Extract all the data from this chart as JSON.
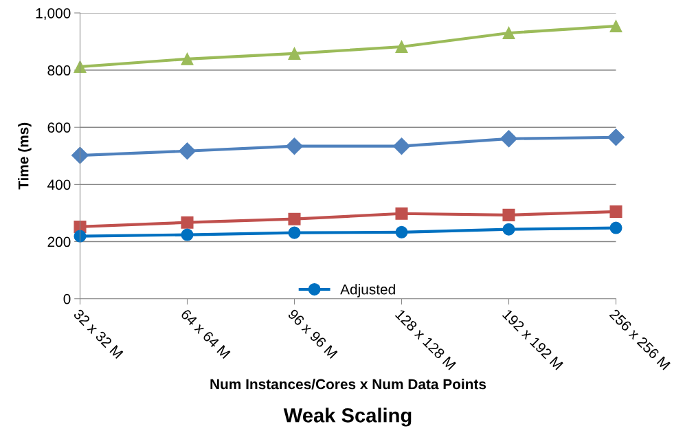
{
  "chart_data": {
    "type": "line",
    "title": "Weak Scaling",
    "xlabel": "Num Instances/Cores x Num Data Points",
    "ylabel": "Time (ms)",
    "categories": [
      "32 x 32 M",
      "64 x 64 M",
      "96 x 96 M",
      "128 x 128 M",
      "192 x 192 M",
      "256 x 256 M"
    ],
    "series": [
      {
        "color": "#9bbb59",
        "marker": "triangle",
        "values": [
          812,
          839,
          858,
          882,
          930,
          954
        ]
      },
      {
        "color": "#4f81bd",
        "marker": "diamond",
        "values": [
          502,
          517,
          534,
          534,
          560,
          565
        ]
      },
      {
        "color": "#c0504d",
        "marker": "square",
        "values": [
          252,
          267,
          279,
          298,
          293,
          305
        ]
      },
      {
        "name": "Adjusted",
        "color": "#0070c0",
        "marker": "circle",
        "values": [
          219,
          224,
          231,
          233,
          243,
          248
        ]
      }
    ],
    "ylim": [
      0,
      1000
    ],
    "yticks": [
      0,
      200,
      400,
      600,
      800,
      {
        "value": 1000,
        "label": "1,000"
      }
    ],
    "grid": "y",
    "legend": "bottom",
    "line_style": "solid"
  }
}
